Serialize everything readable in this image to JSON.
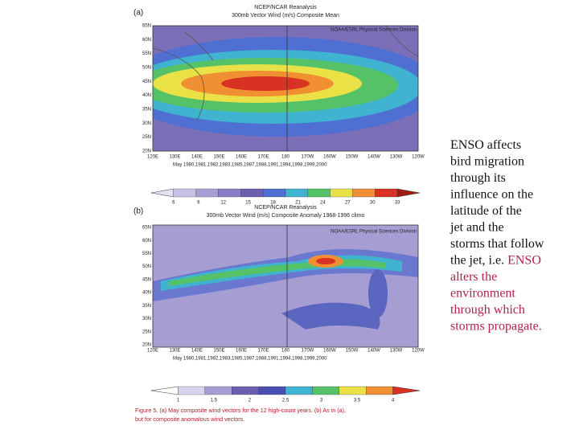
{
  "figure": {
    "panel_a": {
      "label": "(a)",
      "title_lines": [
        "NCEP/NCAR Reanalysis",
        "300mb Vector Wind (m/s) Composite Mean"
      ],
      "credit": "NOAA/ESRL Physical Sciences Division",
      "lat_labels": [
        "65N",
        "60N",
        "55N",
        "50N",
        "45N",
        "40N",
        "35N",
        "30N",
        "25N",
        "20N"
      ],
      "lon_labels": [
        "120E",
        "130E",
        "140E",
        "150E",
        "160E",
        "170E",
        "180",
        "170W",
        "160W",
        "150W",
        "140W",
        "130W",
        "120W"
      ],
      "years": "May 1980,1981,1982,1983,1985,1987,1988,1991,1994,1998,1999,2000",
      "colorbar_labels": [
        "6",
        "9",
        "12",
        "15",
        "18",
        "21",
        "24",
        "27",
        "30",
        "33"
      ]
    },
    "panel_b": {
      "label": "(b)",
      "title_lines": [
        "NCEP/NCAR Reanalysis",
        "300mb Vector Wind (m/s) Composite Anomaly 1968-1996 climo"
      ],
      "credit": "NOAA/ESRL Physical Sciences Division",
      "lat_labels": [
        "65N",
        "60N",
        "55N",
        "50N",
        "45N",
        "40N",
        "35N",
        "30N",
        "25N",
        "20N"
      ],
      "lon_labels": [
        "120E",
        "130E",
        "140E",
        "150E",
        "160E",
        "170E",
        "180",
        "170W",
        "160W",
        "150W",
        "140W",
        "130W",
        "120W"
      ],
      "years": "May 1980,1981,1982,1983,1985,1987,1988,1991,1994,1998,1999,2000",
      "colorbar_labels": [
        "1",
        "1.5",
        "2",
        "2.5",
        "3",
        "3.5",
        "4"
      ]
    },
    "caption_lines": [
      "Figure 5. (a) May composite wind vectors for the 12 high-count years. (b) As in (a),",
      "but for composite anomalous wind vectors."
    ]
  },
  "side_text": {
    "lines": [
      [
        "ENSO affects"
      ],
      [
        "bird migration"
      ],
      [
        "through its"
      ],
      [
        "influence on the"
      ],
      [
        "latitude of the"
      ],
      [
        "jet and the"
      ],
      [
        "storms that follow"
      ],
      [
        "the jet, i.e. ",
        "ENSO"
      ],
      [
        "alters the"
      ],
      [
        "environment"
      ],
      [
        "through which"
      ],
      [
        "storms propagate."
      ]
    ],
    "highlight_from": [
      7,
      1
    ]
  }
}
